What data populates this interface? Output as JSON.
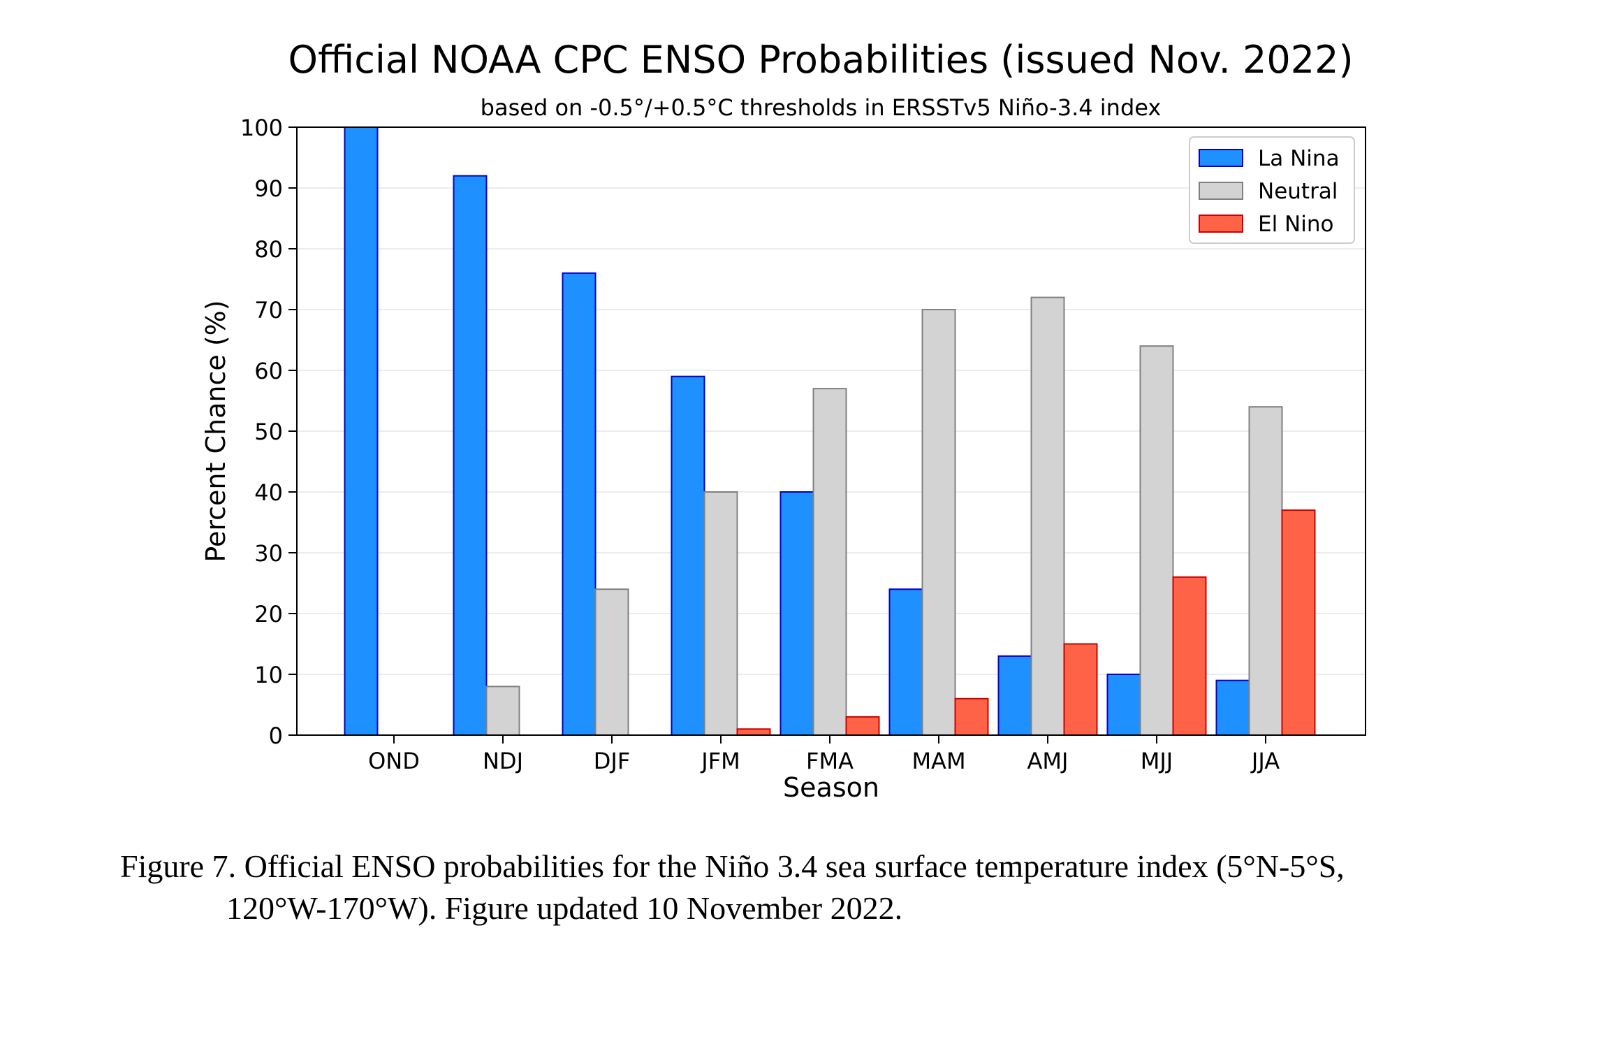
{
  "chart_data": {
    "type": "bar",
    "title": "Official NOAA CPC ENSO Probabilities (issued Nov. 2022)",
    "subtitle": "based on -0.5°/+0.5°C thresholds in ERSSTv5 Niño-3.4 index",
    "xlabel": "Season",
    "ylabel": "Percent Chance (%)",
    "ylim": [
      0,
      100
    ],
    "yticks": [
      0,
      10,
      20,
      30,
      40,
      50,
      60,
      70,
      80,
      90,
      100
    ],
    "grid": true,
    "legend_position": "top-right",
    "categories": [
      "OND",
      "NDJ",
      "DJF",
      "JFM",
      "FMA",
      "MAM",
      "AMJ",
      "MJJ",
      "JJA"
    ],
    "series": [
      {
        "name": "La Nina",
        "color": "#1e90ff",
        "edge": "#0000cc",
        "values": [
          100,
          92,
          76,
          59,
          40,
          24,
          13,
          10,
          9
        ]
      },
      {
        "name": "Neutral",
        "color": "#d3d3d3",
        "edge": "#808080",
        "values": [
          0,
          8,
          24,
          40,
          57,
          70,
          72,
          64,
          54
        ]
      },
      {
        "name": "El Nino",
        "color": "#ff6347",
        "edge": "#cc0000",
        "values": [
          0,
          0,
          0,
          1,
          3,
          6,
          15,
          26,
          37
        ]
      }
    ]
  },
  "caption": {
    "line1": "Figure 7. Official ENSO probabilities for the Niño 3.4 sea surface temperature index (5°N-5°S,",
    "line2": "120°W-170°W). Figure updated 10 November 2022."
  }
}
